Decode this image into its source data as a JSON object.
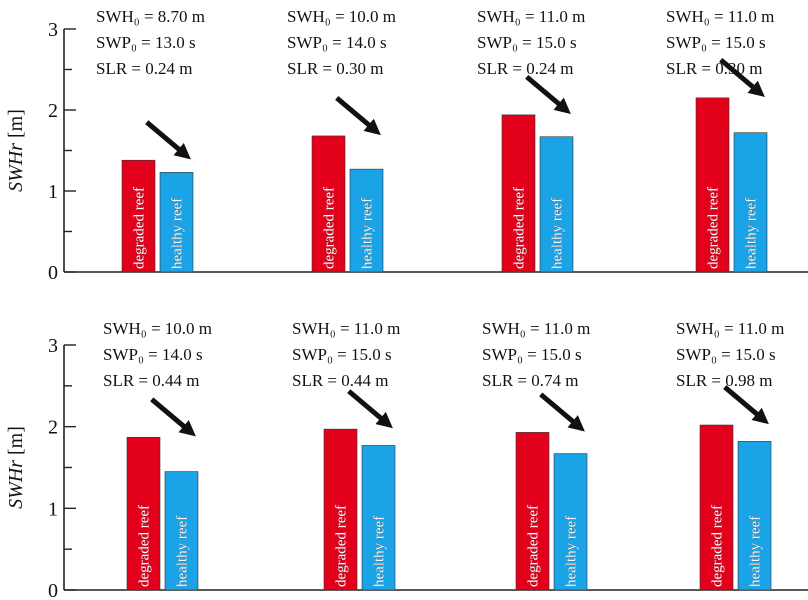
{
  "chart_data": [
    {
      "type": "bar",
      "ylabel_main": "SWH",
      "ylabel_italic": "r",
      "ylabel_unit": " [m]",
      "ylim": [
        0,
        3
      ],
      "yticks": [
        "0",
        "1",
        "2",
        "3"
      ],
      "colors": {
        "degraded": "#e3001b",
        "healthy": "#1ba3e8",
        "arrow": "#111111"
      },
      "groups": [
        {
          "annotations": [
            "SWH₀ = 8.70 m",
            "SWP₀ = 13.0 s",
            "SLR = 0.24 m"
          ],
          "bars": [
            {
              "label": "degraded reef",
              "value": 1.38
            },
            {
              "label": "healthy reef",
              "value": 1.23
            }
          ]
        },
        {
          "annotations": [
            "SWH₀ = 10.0 m",
            "SWP₀ = 14.0 s",
            "SLR = 0.30 m"
          ],
          "bars": [
            {
              "label": "degraded reef",
              "value": 1.68
            },
            {
              "label": "healthy reef",
              "value": 1.27
            }
          ]
        },
        {
          "annotations": [
            "SWH₀ = 11.0 m",
            "SWP₀ = 15.0 s",
            "SLR = 0.24 m"
          ],
          "bars": [
            {
              "label": "degraded reef",
              "value": 1.94
            },
            {
              "label": "healthy reef",
              "value": 1.67
            }
          ]
        },
        {
          "annotations": [
            "SWH₀ = 11.0 m",
            "SWP₀ = 15.0 s",
            "SLR = 0.30 m"
          ],
          "bars": [
            {
              "label": "degraded reef",
              "value": 2.15
            },
            {
              "label": "healthy reef",
              "value": 1.72
            }
          ]
        }
      ]
    },
    {
      "type": "bar",
      "ylabel_main": "SWH",
      "ylabel_italic": "r",
      "ylabel_unit": " [m]",
      "ylim": [
        0,
        3
      ],
      "yticks": [
        "0",
        "1",
        "2",
        "3"
      ],
      "colors": {
        "degraded": "#e3001b",
        "healthy": "#1ba3e8",
        "arrow": "#111111"
      },
      "groups": [
        {
          "annotations": [
            "SWH₀ = 10.0 m",
            "SWP₀ = 14.0 s",
            "SLR = 0.44 m"
          ],
          "bars": [
            {
              "label": "degraded reef",
              "value": 1.87
            },
            {
              "label": "healthy reef",
              "value": 1.45
            }
          ]
        },
        {
          "annotations": [
            "SWH₀ = 11.0 m",
            "SWP₀ = 15.0 s",
            "SLR = 0.44 m"
          ],
          "bars": [
            {
              "label": "degraded reef",
              "value": 1.97
            },
            {
              "label": "healthy reef",
              "value": 1.77
            }
          ]
        },
        {
          "annotations": [
            "SWH₀ = 11.0 m",
            "SWP₀ = 15.0 s",
            "SLR = 0.74 m"
          ],
          "bars": [
            {
              "label": "degraded reef",
              "value": 1.93
            },
            {
              "label": "healthy reef",
              "value": 1.67
            }
          ]
        },
        {
          "annotations": [
            "SWH₀ = 11.0 m",
            "SWP₀ = 15.0 s",
            "SLR = 0.98 m"
          ],
          "bars": [
            {
              "label": "degraded reef",
              "value": 2.02
            },
            {
              "label": "healthy reef",
              "value": 1.82
            }
          ]
        }
      ]
    }
  ]
}
